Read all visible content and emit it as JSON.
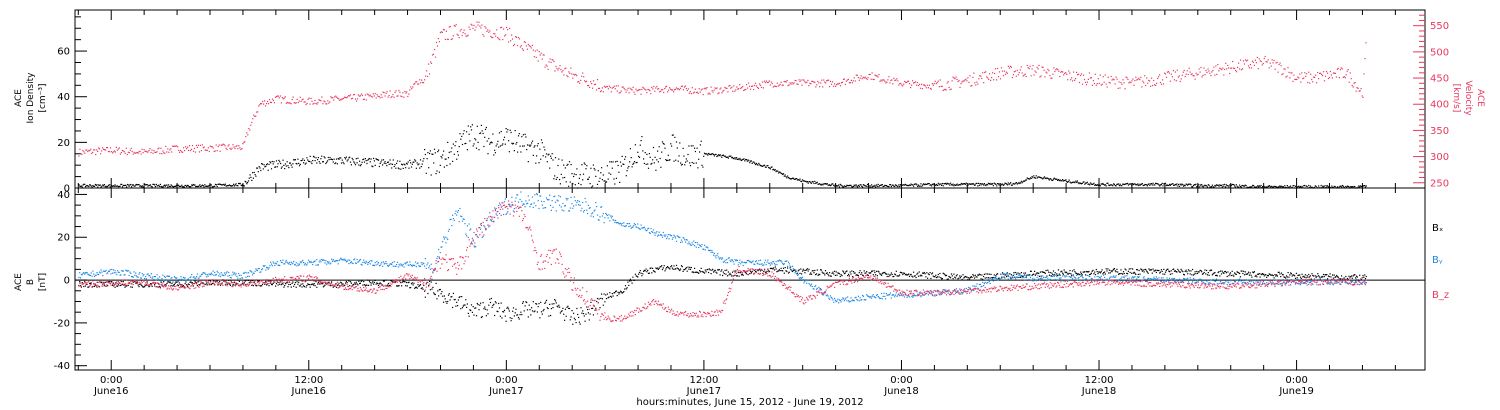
{
  "colors": {
    "density": "#000000",
    "velocity": "#e8395f",
    "bx": "#000000",
    "by": "#1e88e5",
    "bz": "#e8395f",
    "axis": "#000000"
  },
  "xaxis": {
    "title": "hours:minutes, June 15, 2012 - June 19, 2012",
    "range_hours": [
      -2.2,
      79.8
    ],
    "ticks": [
      {
        "hour": 0,
        "time": "0:00",
        "date": "June16"
      },
      {
        "hour": 12,
        "time": "12:00",
        "date": "June16"
      },
      {
        "hour": 24,
        "time": "0:00",
        "date": "June17"
      },
      {
        "hour": 36,
        "time": "12:00",
        "date": "June17"
      },
      {
        "hour": 48,
        "time": "0:00",
        "date": "June18"
      },
      {
        "hour": 60,
        "time": "12:00",
        "date": "June18"
      },
      {
        "hour": 72,
        "time": "0:00",
        "date": "June19"
      }
    ]
  },
  "panels": {
    "top": {
      "left_label": [
        "ACE",
        "Ion Density",
        "[cm⁻³]"
      ],
      "right_label": [
        "ACE",
        "Velocity",
        "[km/s]"
      ]
    },
    "bottom": {
      "left_label": [
        "ACE",
        "B",
        "[nT]"
      ],
      "legend": [
        "Bₓ",
        "Bᵧ",
        "B_z"
      ]
    }
  },
  "chart_data": [
    {
      "type": "scatter",
      "title": "",
      "xlabel": "hours:minutes, June 15, 2012 - June 19, 2012",
      "ylabel": "ACE Ion Density [cm⁻³]",
      "y2label": "ACE Velocity [km/s]",
      "ylim": [
        0,
        78
      ],
      "y2lim": [
        240,
        580
      ],
      "yticks": [
        0,
        20,
        40,
        60
      ],
      "y2ticks": [
        250,
        300,
        350,
        400,
        450,
        500,
        550
      ],
      "series": [
        {
          "key": "density",
          "axis": "left",
          "x": [
            -2,
            2,
            6,
            8,
            9,
            10,
            12,
            14,
            16,
            18,
            20,
            21,
            22,
            23,
            24,
            25,
            26,
            27,
            28,
            30,
            31,
            32,
            33,
            34,
            35,
            36,
            38,
            40,
            41,
            42,
            44,
            46,
            48,
            50,
            51,
            52,
            54,
            55,
            56,
            58,
            60,
            62,
            64,
            66,
            68,
            70,
            76.2
          ],
          "y": [
            1,
            1,
            1,
            1.5,
            9,
            10,
            12,
            12,
            11,
            10,
            12,
            18,
            24,
            20,
            22,
            18,
            16,
            8,
            6,
            5,
            8,
            18,
            12,
            18,
            14,
            15,
            13,
            9,
            5,
            3,
            1,
            1,
            1,
            1.5,
            1.5,
            1.5,
            1.5,
            2,
            5,
            3,
            1.5,
            1.5,
            1.5,
            1,
            1,
            0.5,
            0.5
          ]
        },
        {
          "key": "velocity",
          "axis": "right",
          "x": [
            -2,
            0,
            2,
            4,
            6,
            8,
            8.3,
            9,
            10,
            12,
            14,
            16,
            17,
            18,
            18.6,
            19,
            20,
            21,
            22,
            23,
            24,
            25,
            26,
            27,
            28,
            29,
            30,
            32,
            34,
            36,
            38,
            40,
            42,
            44,
            46,
            48,
            50,
            52,
            54,
            56,
            58,
            60,
            62,
            64,
            66,
            68,
            70,
            71,
            72,
            73,
            74,
            75,
            76,
            76.2
          ],
          "y": [
            308,
            312,
            308,
            315,
            316,
            318,
            350,
            400,
            410,
            405,
            410,
            415,
            420,
            420,
            445,
            445,
            530,
            540,
            545,
            540,
            535,
            510,
            490,
            470,
            455,
            445,
            430,
            425,
            430,
            425,
            430,
            440,
            440,
            440,
            455,
            440,
            435,
            445,
            460,
            465,
            455,
            445,
            440,
            450,
            460,
            470,
            480,
            470,
            450,
            450,
            455,
            460,
            420,
            525
          ]
        }
      ]
    },
    {
      "type": "scatter",
      "title": "",
      "xlabel": "hours:minutes, June 15, 2012 - June 19, 2012",
      "ylabel": "ACE B [nT]",
      "ylim": [
        -42,
        43
      ],
      "yticks": [
        -40,
        -20,
        0,
        20,
        40
      ],
      "zero_line": true,
      "series": [
        {
          "key": "bx",
          "name": "Bₓ",
          "x": [
            -2,
            4,
            8,
            10,
            14,
            16,
            18,
            19,
            20,
            21,
            22,
            23,
            24,
            25,
            26,
            27,
            28,
            29,
            30,
            31,
            32,
            33,
            34,
            36,
            38,
            40,
            42,
            44,
            46,
            48,
            52,
            56,
            60,
            64,
            68,
            72,
            76.2
          ],
          "y": [
            -2,
            -2,
            -1,
            -2,
            -2,
            -1,
            -2,
            -4,
            -6,
            -10,
            -15,
            -12,
            -16,
            -14,
            -14,
            -12,
            -18,
            -15,
            -8,
            -5,
            3,
            5,
            6,
            4,
            3,
            5,
            4,
            3,
            3,
            3,
            1,
            3,
            4,
            4,
            3,
            2,
            1
          ]
        },
        {
          "key": "by",
          "name": "Bᵧ",
          "x": [
            -2,
            0,
            2,
            4,
            6,
            8,
            9,
            10,
            12,
            14,
            16,
            18,
            19,
            19.5,
            20,
            21,
            22,
            23,
            24,
            25,
            26,
            27,
            28,
            29,
            30,
            31,
            32,
            33,
            34,
            35,
            36,
            37,
            38,
            40,
            41,
            42,
            44,
            46,
            48,
            50,
            52,
            54,
            56,
            58,
            60,
            64,
            68,
            72,
            76.2
          ],
          "y": [
            2,
            4,
            2,
            0,
            3,
            2,
            5,
            8,
            8,
            9,
            8,
            7,
            8,
            4,
            15,
            32,
            18,
            28,
            35,
            38,
            37,
            36,
            35,
            34,
            30,
            26,
            25,
            22,
            20,
            18,
            15,
            10,
            8,
            8,
            8,
            0,
            -10,
            -8,
            -7,
            -6,
            -5,
            2,
            1,
            1,
            1,
            0,
            -1,
            -1,
            -1
          ]
        },
        {
          "key": "bz",
          "name": "B_z",
          "x": [
            -2,
            2,
            4,
            6,
            8,
            10,
            12,
            14,
            16,
            18,
            19,
            20,
            21,
            22,
            23,
            24,
            25,
            26,
            27,
            28,
            29,
            30,
            31,
            32,
            33,
            34,
            35,
            36,
            37,
            38,
            39,
            40,
            41,
            42,
            44,
            46,
            48,
            50,
            52,
            54,
            56,
            58,
            60,
            64,
            68,
            72,
            76.2
          ],
          "y": [
            -2,
            -1,
            -4,
            -1,
            -2,
            0,
            1,
            -3,
            -5,
            2,
            -2,
            10,
            5,
            20,
            28,
            36,
            30,
            8,
            12,
            -2,
            -10,
            -18,
            -18,
            -14,
            -10,
            -15,
            -16,
            -16,
            -15,
            5,
            4,
            3,
            -3,
            -10,
            -2,
            2,
            -6,
            -6,
            -5,
            -4,
            -3,
            -2,
            -1,
            -2,
            -3,
            -1,
            -1
          ]
        }
      ]
    }
  ]
}
